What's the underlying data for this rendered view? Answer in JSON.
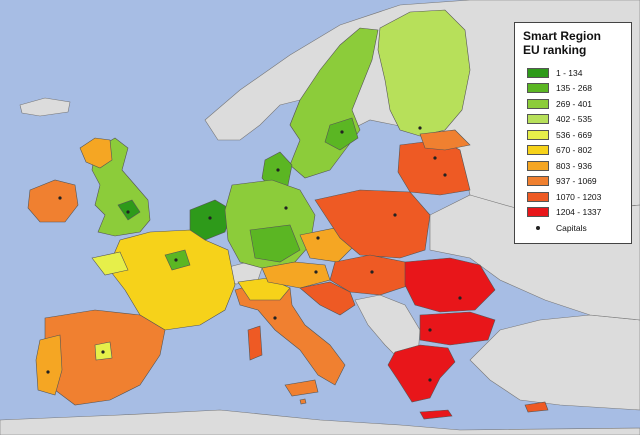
{
  "legend": {
    "title": "Smart Region\nEU ranking",
    "classes": [
      {
        "label": "1 - 134",
        "color": "#2e9a1a"
      },
      {
        "label": "135 - 268",
        "color": "#5bb623"
      },
      {
        "label": "269 - 401",
        "color": "#8ccc3a"
      },
      {
        "label": "402 - 535",
        "color": "#b7e05a"
      },
      {
        "label": "536 - 669",
        "color": "#e6ef4a"
      },
      {
        "label": "670 - 802",
        "color": "#f6d21a"
      },
      {
        "label": "803 - 936",
        "color": "#f5a623"
      },
      {
        "label": "937 - 1069",
        "color": "#f08030"
      },
      {
        "label": "1070 - 1203",
        "color": "#ee5a24"
      },
      {
        "label": "1204 - 1337",
        "color": "#e8161a"
      }
    ],
    "capitals_label": "Capitals"
  },
  "colors": {
    "sea": "#a7bde4",
    "non_eu_land": "#dcdcdc",
    "border": "#555555"
  }
}
